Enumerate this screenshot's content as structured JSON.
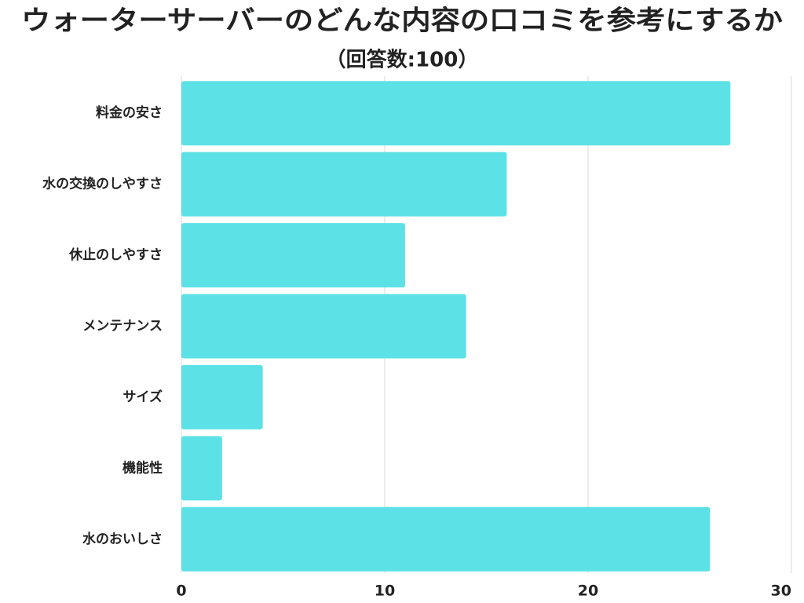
{
  "chart_data": {
    "type": "bar",
    "orientation": "horizontal",
    "title": "ウォーターサーバーのどんな内容の口コミを参考にするか",
    "subtitle": "（回答数:100）",
    "categories": [
      "料金の安さ",
      "水の交換のしやすさ",
      "休止のしやすさ",
      "メンテナンス",
      "サイズ",
      "機能性",
      "水のおいしさ"
    ],
    "values": [
      27,
      16,
      11,
      14,
      4,
      2,
      26
    ],
    "color": "#5ce1e6",
    "xlim": [
      0,
      30
    ],
    "xticks": [
      0,
      10,
      20,
      30
    ],
    "grid": true
  }
}
